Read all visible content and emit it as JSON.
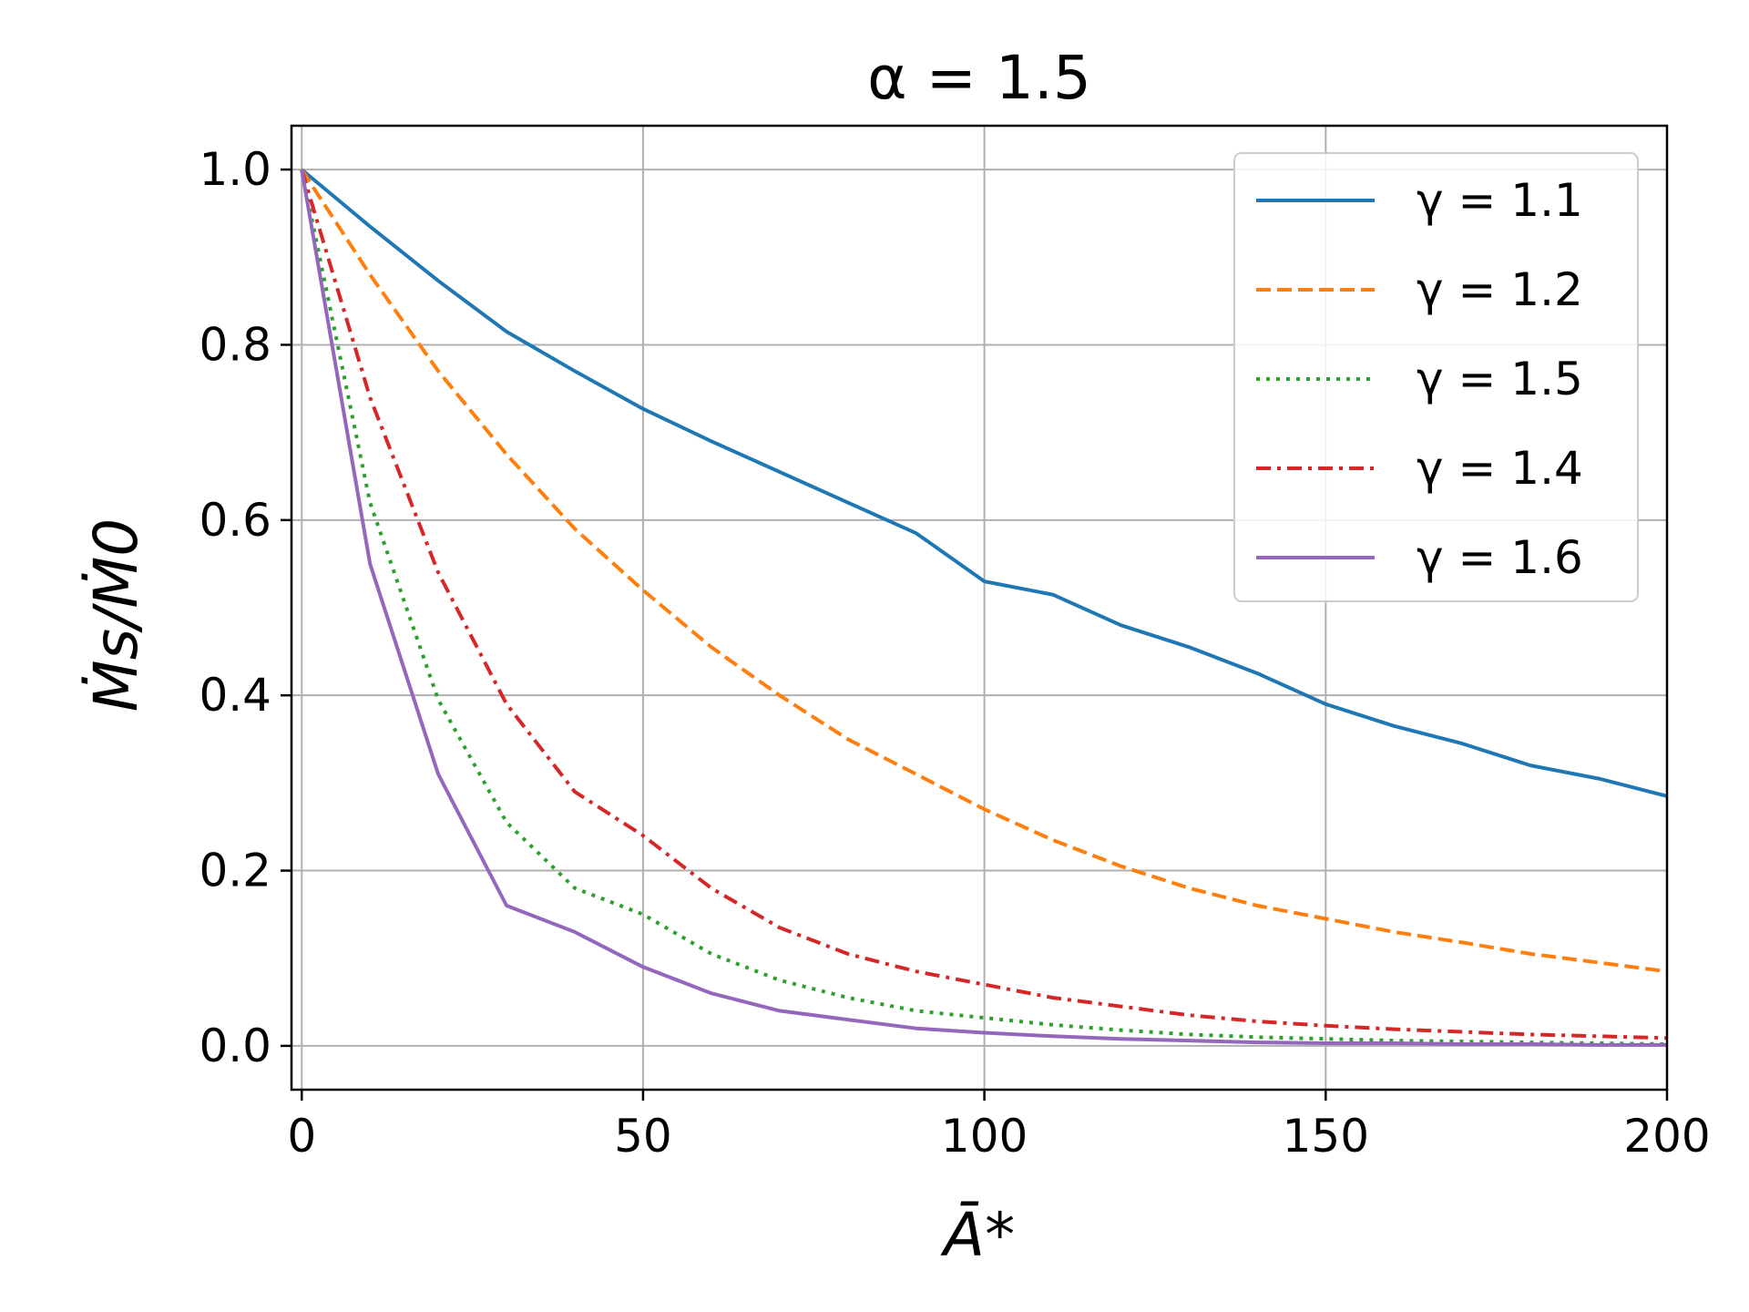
{
  "chart_data": {
    "type": "line",
    "title": "α = 1.5",
    "xlabel": "Ā*",
    "ylabel": "Ṁs/Ṁ0",
    "xlim": [
      -1.5,
      200
    ],
    "ylim": [
      -0.05,
      1.05
    ],
    "xticks": [
      0,
      50,
      100,
      150,
      200
    ],
    "xtick_labels": [
      "0",
      "50",
      "100",
      "150",
      "200"
    ],
    "yticks": [
      0.0,
      0.2,
      0.4,
      0.6,
      0.8,
      1.0
    ],
    "ytick_labels": [
      "0.0",
      "0.2",
      "0.4",
      "0.6",
      "0.8",
      "1.0"
    ],
    "grid": true,
    "legend_position": "top-right",
    "x": [
      0,
      10,
      20,
      30,
      40,
      50,
      60,
      70,
      80,
      90,
      100,
      110,
      120,
      130,
      140,
      150,
      160,
      170,
      180,
      190,
      200
    ],
    "series": [
      {
        "name": "γ = 1.1",
        "color": "#1f77b4",
        "dash": "solid",
        "values": [
          1.0,
          0.935,
          0.873,
          0.815,
          0.77,
          0.727,
          0.69,
          0.655,
          0.62,
          0.585,
          0.53,
          0.515,
          0.48,
          0.455,
          0.425,
          0.39,
          0.365,
          0.345,
          0.32,
          0.305,
          0.285
        ]
      },
      {
        "name": "γ = 1.2",
        "color": "#ff7f0e",
        "dash": "dashed",
        "values": [
          1.0,
          0.88,
          0.77,
          0.675,
          0.59,
          0.52,
          0.455,
          0.4,
          0.35,
          0.31,
          0.27,
          0.235,
          0.205,
          0.18,
          0.16,
          0.145,
          0.13,
          0.118,
          0.105,
          0.095,
          0.085
        ]
      },
      {
        "name": "γ = 1.5",
        "color": "#2ca02c",
        "dash": "dotted",
        "values": [
          1.0,
          0.62,
          0.395,
          0.255,
          0.18,
          0.15,
          0.105,
          0.075,
          0.055,
          0.04,
          0.032,
          0.024,
          0.018,
          0.013,
          0.01,
          0.008,
          0.006,
          0.005,
          0.004,
          0.003,
          0.002
        ]
      },
      {
        "name": "γ = 1.4",
        "color": "#d62728",
        "dash": "dashdot",
        "values": [
          1.0,
          0.74,
          0.54,
          0.39,
          0.29,
          0.24,
          0.18,
          0.135,
          0.105,
          0.085,
          0.07,
          0.055,
          0.045,
          0.035,
          0.028,
          0.023,
          0.019,
          0.016,
          0.013,
          0.011,
          0.009
        ]
      },
      {
        "name": "γ = 1.6",
        "color": "#9467bd",
        "dash": "solid",
        "values": [
          1.0,
          0.55,
          0.31,
          0.16,
          0.13,
          0.09,
          0.06,
          0.04,
          0.03,
          0.02,
          0.015,
          0.011,
          0.008,
          0.006,
          0.004,
          0.003,
          0.003,
          0.002,
          0.002,
          0.001,
          0.001
        ]
      }
    ]
  }
}
